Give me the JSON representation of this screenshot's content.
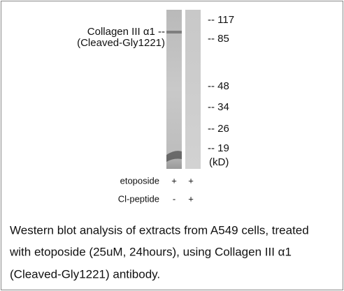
{
  "blot": {
    "target_label": [
      "Collagen III α1 --",
      "(Cleaved-Gly1221)"
    ],
    "markers": [
      "-- 117",
      "-- 85",
      "-- 48",
      "-- 34",
      "-- 26",
      "-- 19"
    ],
    "unit": "(kD)"
  },
  "conditions": [
    {
      "name": "etoposide",
      "lanes": [
        "+",
        "+"
      ]
    },
    {
      "name": "Cl-peptide",
      "lanes": [
        "-",
        "+"
      ]
    }
  ],
  "caption": [
    "Western blot analysis of extracts from A549 cells, treated",
    "with etoposide (25uM, 24hours), using Collagen III α1",
    "(Cleaved-Gly1221) antibody."
  ]
}
